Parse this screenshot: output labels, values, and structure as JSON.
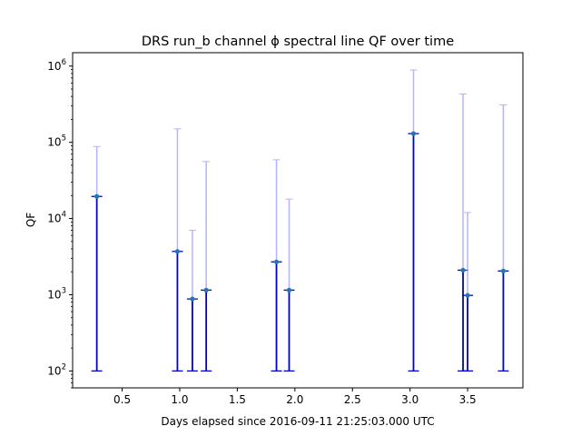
{
  "chart_data": {
    "type": "scatter",
    "title": "DRS run_b channel ϕ spectral line QF over time",
    "xlabel": "Days elapsed since 2016-09-11 21:25:03.000 UTC",
    "ylabel": "QF",
    "xlim": [
      0.07,
      3.98
    ],
    "ylim": [
      60,
      1500000
    ],
    "yscale": "log",
    "grid": false,
    "legend": "none",
    "x_ticks": [
      0.5,
      1.0,
      1.5,
      2.0,
      2.5,
      3.0,
      3.5
    ],
    "x_tick_labels": [
      "0.5",
      "1.0",
      "1.5",
      "2.0",
      "2.5",
      "3.0",
      "3.5"
    ],
    "y_ticks": [
      100,
      1000,
      10000,
      100000,
      1000000
    ],
    "y_tick_bases": [
      "10",
      "10",
      "10",
      "10",
      "10"
    ],
    "y_tick_exps": [
      "2",
      "3",
      "4",
      "5",
      "6"
    ],
    "error_floor": 100,
    "colors": {
      "point": "#1f77b4",
      "lower_bar": "#0000cc",
      "upper_bar": "#b3b3ff"
    },
    "points": [
      {
        "x": 0.28,
        "y": 19500,
        "upper": 88000
      },
      {
        "x": 0.98,
        "y": 3700,
        "upper": 150000
      },
      {
        "x": 1.11,
        "y": 880,
        "upper": 7000
      },
      {
        "x": 1.23,
        "y": 1150,
        "upper": 56000
      },
      {
        "x": 1.84,
        "y": 2700,
        "upper": 59000
      },
      {
        "x": 1.95,
        "y": 1150,
        "upper": 18000
      },
      {
        "x": 3.03,
        "y": 130000,
        "upper": 890000
      },
      {
        "x": 3.46,
        "y": 2100,
        "upper": 430000
      },
      {
        "x": 3.5,
        "y": 980,
        "upper": 12000
      },
      {
        "x": 3.81,
        "y": 2050,
        "upper": 310000
      }
    ]
  }
}
